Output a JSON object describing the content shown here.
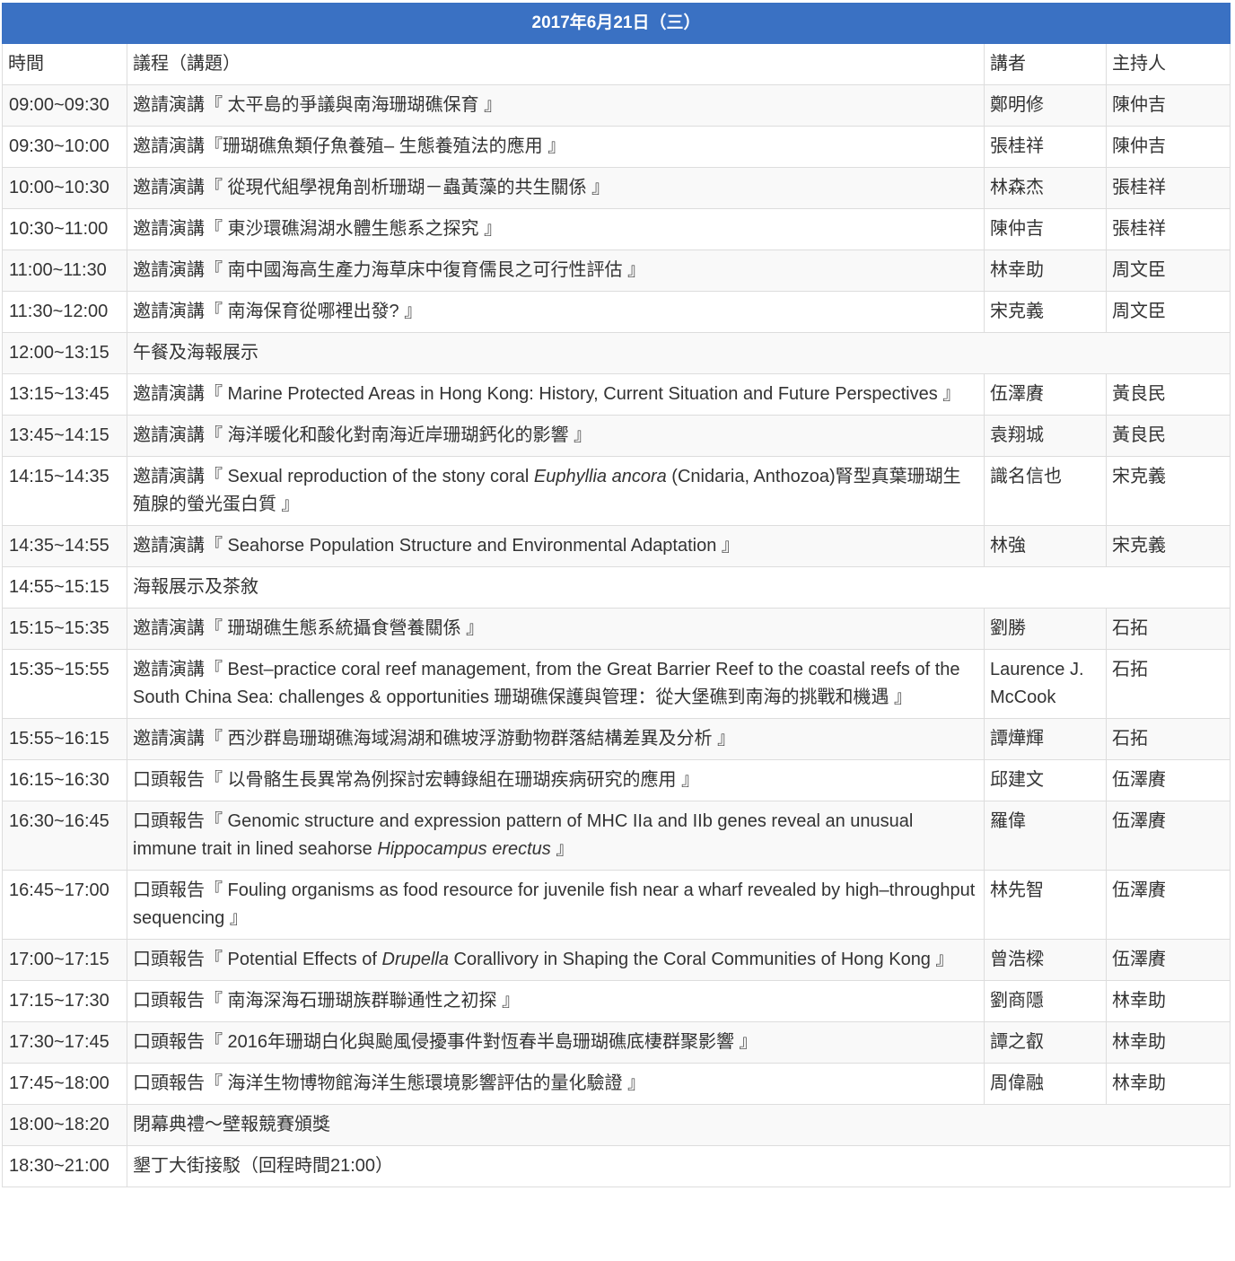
{
  "title": "2017年6月21日（三）",
  "header_color": "#3a71c3",
  "columns": {
    "time": "時間",
    "topic": "議程（講題）",
    "speaker": "講者",
    "host": "主持人"
  },
  "rows": [
    {
      "time": "09:00~09:30",
      "topic": [
        {
          "t": "邀請演講『 太平島的爭議與南海珊瑚礁保育 』"
        }
      ],
      "speaker": "鄭明修",
      "host": "陳仲吉"
    },
    {
      "time": "09:30~10:00",
      "topic": [
        {
          "t": "邀請演講『珊瑚礁魚類仔魚養殖– 生態養殖法的應用 』"
        }
      ],
      "speaker": "張桂祥",
      "host": "陳仲吉"
    },
    {
      "time": "10:00~10:30",
      "topic": [
        {
          "t": "邀請演講『 從現代組學視角剖析珊瑚－蟲黃藻的共生關係 』"
        }
      ],
      "speaker": "林森杰",
      "host": "張桂祥"
    },
    {
      "time": "10:30~11:00",
      "topic": [
        {
          "t": "邀請演講『 東沙環礁潟湖水體生態系之探究 』"
        }
      ],
      "speaker": "陳仲吉",
      "host": "張桂祥"
    },
    {
      "time": "11:00~11:30",
      "topic": [
        {
          "t": "邀請演講『 南中國海高生產力海草床中復育儒艮之可行性評估 』"
        }
      ],
      "speaker": "林幸助",
      "host": "周文臣"
    },
    {
      "time": "11:30~12:00",
      "topic": [
        {
          "t": "邀請演講『 南海保育從哪裡出發? 』"
        }
      ],
      "speaker": "宋克義",
      "host": "周文臣"
    },
    {
      "time": "12:00~13:15",
      "topic": [
        {
          "t": "午餐及海報展示"
        }
      ],
      "span": true
    },
    {
      "time": "13:15~13:45",
      "topic": [
        {
          "t": "邀請演講『 Marine Protected Areas in Hong Kong: History, Current Situation and Future Perspectives 』"
        }
      ],
      "speaker": "伍澤賡",
      "host": "黃良民"
    },
    {
      "time": "13:45~14:15",
      "topic": [
        {
          "t": "邀請演講『 海洋暖化和酸化對南海近岸珊瑚鈣化的影響 』"
        }
      ],
      "speaker": "袁翔城",
      "host": "黃良民"
    },
    {
      "time": "14:15~14:35",
      "topic": [
        {
          "t": "邀請演講『 Sexual reproduction of the stony coral "
        },
        {
          "t": "Euphyllia ancora",
          "i": true
        },
        {
          "t": " (Cnidaria, Anthozoa)腎型真葉珊瑚生殖腺的螢光蛋白質 』"
        }
      ],
      "speaker": "識名信也",
      "host": "宋克義"
    },
    {
      "time": "14:35~14:55",
      "topic": [
        {
          "t": "邀請演講『 Seahorse Population Structure and Environmental Adaptation 』"
        }
      ],
      "speaker": "林強",
      "host": "宋克義"
    },
    {
      "time": "14:55~15:15",
      "topic": [
        {
          "t": "海報展示及茶敘"
        }
      ],
      "span": true
    },
    {
      "time": "15:15~15:35",
      "topic": [
        {
          "t": "邀請演講『 珊瑚礁生態系統攝食營養關係 』"
        }
      ],
      "speaker": "劉勝",
      "host": "石拓"
    },
    {
      "time": "15:35~15:55",
      "topic": [
        {
          "t": "邀請演講『 Best–practice coral reef management, from the Great Barrier Reef to the coastal reefs of the South China Sea: challenges & opportunities 珊瑚礁保護與管理：從大堡礁到南海的挑戰和機遇 』"
        }
      ],
      "speaker": "Laurence J. McCook",
      "host": "石拓"
    },
    {
      "time": "15:55~16:15",
      "topic": [
        {
          "t": "邀請演講『 西沙群島珊瑚礁海域潟湖和礁坡浮游動物群落結構差異及分析 』"
        }
      ],
      "speaker": "譚燁輝",
      "host": "石拓"
    },
    {
      "time": "16:15~16:30",
      "topic": [
        {
          "t": "口頭報告『 以骨骼生長異常為例探討宏轉錄組在珊瑚疾病研究的應用 』"
        }
      ],
      "speaker": "邱建文",
      "host": "伍澤賡"
    },
    {
      "time": "16:30~16:45",
      "topic": [
        {
          "t": "口頭報告『 Genomic structure and expression pattern of MHC IIa and IIb genes reveal an unusual immune trait in lined seahorse "
        },
        {
          "t": "Hippocampus erectus",
          "i": true
        },
        {
          "t": " 』"
        }
      ],
      "speaker": "羅偉",
      "host": "伍澤賡"
    },
    {
      "time": "16:45~17:00",
      "topic": [
        {
          "t": "口頭報告『 Fouling organisms as food resource for juvenile fish near a wharf revealed by high–throughput sequencing 』"
        }
      ],
      "speaker": "林先智",
      "host": "伍澤賡"
    },
    {
      "time": "17:00~17:15",
      "topic": [
        {
          "t": "口頭報告『 Potential Effects of "
        },
        {
          "t": "Drupella",
          "i": true
        },
        {
          "t": " Corallivory in Shaping the Coral Communities of Hong Kong 』"
        }
      ],
      "speaker": "曾浩樑",
      "host": "伍澤賡"
    },
    {
      "time": "17:15~17:30",
      "topic": [
        {
          "t": "口頭報告『 南海深海石珊瑚族群聯通性之初探 』"
        }
      ],
      "speaker": "劉商隱",
      "host": "林幸助"
    },
    {
      "time": "17:30~17:45",
      "topic": [
        {
          "t": "口頭報告『 2016年珊瑚白化與颱風侵擾事件對恆春半島珊瑚礁底棲群聚影響 』"
        }
      ],
      "speaker": "譚之叡",
      "host": "林幸助"
    },
    {
      "time": "17:45~18:00",
      "topic": [
        {
          "t": "口頭報告『 海洋生物博物館海洋生態環境影響評估的量化驗證 』"
        }
      ],
      "speaker": "周偉融",
      "host": "林幸助"
    },
    {
      "time": "18:00~18:20",
      "topic": [
        {
          "t": "閉幕典禮～壁報競賽頒獎"
        }
      ],
      "span": true
    },
    {
      "time": "18:30~21:00",
      "topic": [
        {
          "t": "墾丁大街接駁（回程時間21:00）"
        }
      ],
      "span": true
    }
  ]
}
